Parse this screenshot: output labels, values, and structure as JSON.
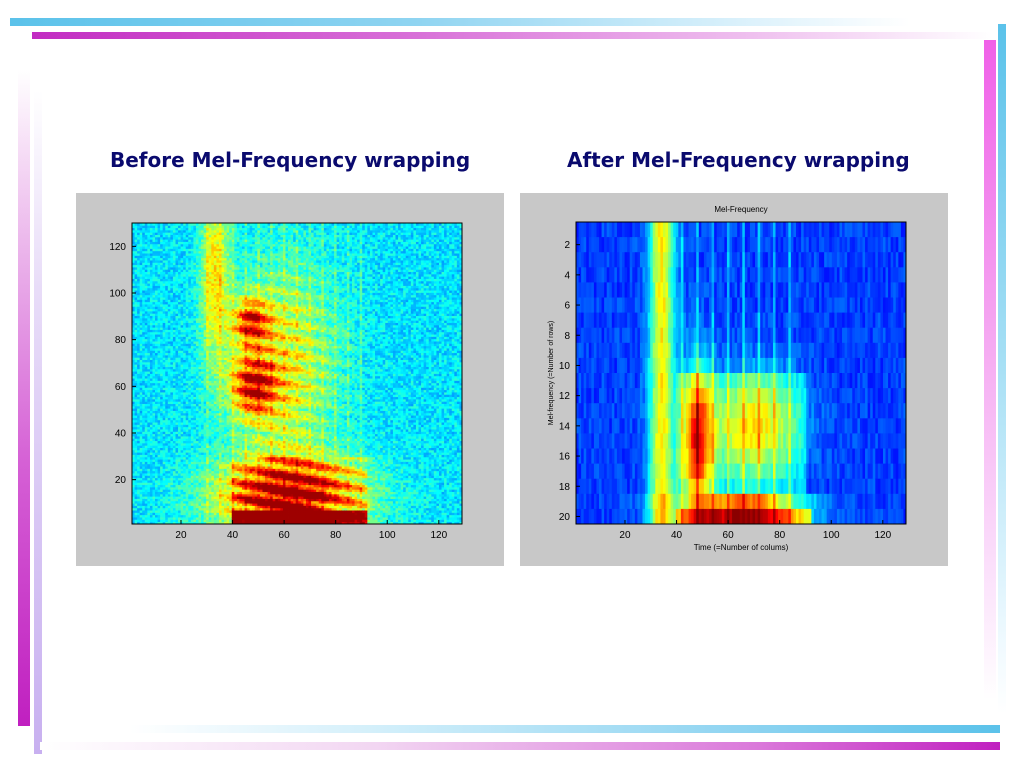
{
  "slide": {
    "left_heading": "Before Mel-Frequency wrapping",
    "right_heading": "After Mel-Frequency wrapping"
  },
  "chart_data": [
    {
      "type": "heatmap",
      "title": "",
      "xlabel": "",
      "ylabel": "",
      "xlim": [
        1,
        129
      ],
      "ylim": [
        1,
        130
      ],
      "x_ticks": [
        20,
        40,
        60,
        80,
        100,
        120
      ],
      "y_ticks": [
        20,
        40,
        60,
        80,
        100,
        120
      ],
      "y_direction": "normal",
      "colormap": "jet"
    },
    {
      "type": "heatmap",
      "title": "Mel-Frequency",
      "xlabel": "Time (=Number of colums)",
      "ylabel": "Mel-frequency (=Number of rows)",
      "xlim": [
        1,
        129
      ],
      "ylim": [
        1,
        20
      ],
      "x_ticks": [
        20,
        40,
        60,
        80,
        100,
        120
      ],
      "y_ticks": [
        2,
        4,
        6,
        8,
        10,
        12,
        14,
        16,
        18,
        20
      ],
      "y_direction": "reverse",
      "colormap": "jet"
    }
  ]
}
